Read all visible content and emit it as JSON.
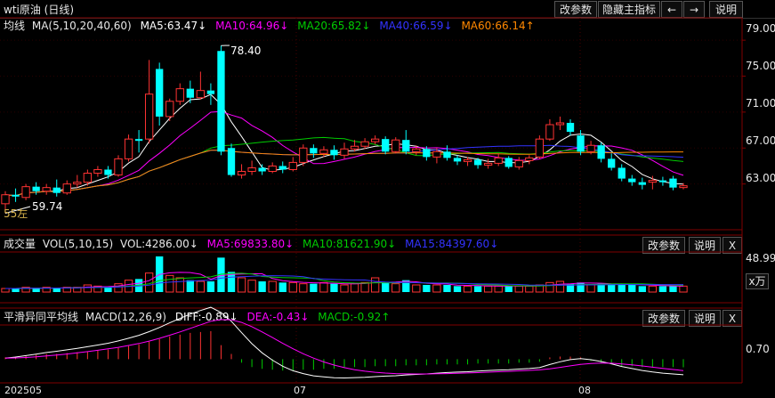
{
  "title": "wti原油 (日线)",
  "toolbar": {
    "modify_params": "改参数",
    "hide_main_indicator": "隐藏主指标",
    "prev_icon": "arrow-left-icon",
    "next_icon": "arrow-right-icon",
    "help": "说明"
  },
  "main_panel": {
    "label": "均线",
    "params": "MA(5,10,20,40,60)",
    "ma5": "MA5:63.47↓",
    "ma10": "MA10:64.96↓",
    "ma20": "MA20:65.82↓",
    "ma40": "MA40:66.59↓",
    "ma60": "MA60:66.14↑",
    "high_marker": "78.40",
    "low_marker": "59.74",
    "low_suffix": "55左"
  },
  "volume_panel": {
    "label": "成交量",
    "params": "VOL(5,10,15)",
    "vol": "VOL:4286.00↓",
    "ma5": "MA5:69833.80↓",
    "ma10": "MA10:81621.90↓",
    "ma15": "MA15:84397.60↓",
    "modify_params": "改参数",
    "help": "说明",
    "close": "X",
    "yaxis_top": "48.99",
    "unit": "x万"
  },
  "macd_panel": {
    "label": "平滑异同平均线",
    "params": "MACD(12,26,9)",
    "diff": "DIFF:-0.89↓",
    "dea": "DEA:-0.43↓",
    "macd": "MACD:-0.92↑",
    "modify_params": "改参数",
    "help": "说明",
    "close": "X",
    "yaxis_label": "0.70"
  },
  "x_axis_labels": [
    "202505",
    "07",
    "08"
  ],
  "colors": {
    "up": "#ff3333",
    "down": "#00ffff",
    "ma5": "#ffffff",
    "ma10": "#ff00ff",
    "ma20": "#00cc00",
    "ma40": "#3333ff",
    "ma60": "#ff8800",
    "axis": "#800000"
  },
  "chart_data": {
    "type": "candlestick",
    "y_ticks": [
      79.0,
      75.0,
      71.0,
      67.0,
      63.0
    ],
    "ylim": [
      59.0,
      80.5
    ],
    "candles": [
      {
        "o": 60.8,
        "c": 61.8,
        "h": 62.2,
        "l": 59.74
      },
      {
        "o": 61.8,
        "c": 61.6,
        "h": 62.5,
        "l": 61.0
      },
      {
        "o": 61.5,
        "c": 62.7,
        "h": 63.0,
        "l": 61.2
      },
      {
        "o": 62.7,
        "c": 62.2,
        "h": 63.2,
        "l": 61.8
      },
      {
        "o": 62.2,
        "c": 62.6,
        "h": 63.0,
        "l": 61.8
      },
      {
        "o": 62.6,
        "c": 62.0,
        "h": 63.5,
        "l": 61.6
      },
      {
        "o": 62.0,
        "c": 63.0,
        "h": 63.4,
        "l": 61.8
      },
      {
        "o": 63.0,
        "c": 63.2,
        "h": 64.0,
        "l": 62.6
      },
      {
        "o": 63.2,
        "c": 64.2,
        "h": 64.6,
        "l": 62.8
      },
      {
        "o": 64.2,
        "c": 64.6,
        "h": 65.0,
        "l": 63.8
      },
      {
        "o": 64.6,
        "c": 64.0,
        "h": 65.0,
        "l": 63.6
      },
      {
        "o": 64.0,
        "c": 65.8,
        "h": 66.2,
        "l": 63.8
      },
      {
        "o": 65.8,
        "c": 68.0,
        "h": 68.5,
        "l": 65.5
      },
      {
        "o": 68.0,
        "c": 67.8,
        "h": 69.0,
        "l": 66.5
      },
      {
        "o": 68.0,
        "c": 73.0,
        "h": 76.8,
        "l": 67.5
      },
      {
        "o": 75.8,
        "c": 70.5,
        "h": 76.5,
        "l": 69.5
      },
      {
        "o": 70.5,
        "c": 72.2,
        "h": 72.5,
        "l": 70.0
      },
      {
        "o": 72.2,
        "c": 73.6,
        "h": 74.2,
        "l": 71.8
      },
      {
        "o": 73.6,
        "c": 72.6,
        "h": 74.5,
        "l": 72.0
      },
      {
        "o": 72.6,
        "c": 73.4,
        "h": 75.5,
        "l": 72.4
      },
      {
        "o": 73.4,
        "c": 73.0,
        "h": 74.2,
        "l": 71.8
      },
      {
        "o": 77.8,
        "c": 66.6,
        "h": 78.4,
        "l": 66.2
      },
      {
        "o": 67.0,
        "c": 64.0,
        "h": 67.5,
        "l": 63.8
      },
      {
        "o": 64.0,
        "c": 64.4,
        "h": 65.2,
        "l": 63.6
      },
      {
        "o": 64.4,
        "c": 64.8,
        "h": 65.6,
        "l": 64.0
      },
      {
        "o": 64.8,
        "c": 64.4,
        "h": 65.2,
        "l": 64.0
      },
      {
        "o": 64.4,
        "c": 65.0,
        "h": 65.4,
        "l": 64.2
      },
      {
        "o": 65.0,
        "c": 64.6,
        "h": 65.5,
        "l": 64.2
      },
      {
        "o": 64.6,
        "c": 65.4,
        "h": 66.0,
        "l": 64.4
      },
      {
        "o": 65.4,
        "c": 67.0,
        "h": 67.4,
        "l": 65.0
      },
      {
        "o": 67.0,
        "c": 66.4,
        "h": 67.4,
        "l": 65.9
      },
      {
        "o": 66.4,
        "c": 66.8,
        "h": 67.2,
        "l": 66.0
      },
      {
        "o": 66.8,
        "c": 66.2,
        "h": 67.3,
        "l": 65.7
      },
      {
        "o": 66.2,
        "c": 66.9,
        "h": 67.6,
        "l": 65.8
      },
      {
        "o": 66.9,
        "c": 67.2,
        "h": 67.9,
        "l": 66.6
      },
      {
        "o": 67.2,
        "c": 67.7,
        "h": 68.1,
        "l": 66.9
      },
      {
        "o": 67.7,
        "c": 68.0,
        "h": 68.4,
        "l": 67.4
      },
      {
        "o": 68.0,
        "c": 66.6,
        "h": 68.3,
        "l": 66.3
      },
      {
        "o": 66.6,
        "c": 67.9,
        "h": 68.2,
        "l": 66.4
      },
      {
        "o": 67.9,
        "c": 66.6,
        "h": 69.0,
        "l": 66.3
      },
      {
        "o": 66.6,
        "c": 66.9,
        "h": 67.3,
        "l": 66.2
      },
      {
        "o": 66.9,
        "c": 66.0,
        "h": 67.2,
        "l": 65.6
      },
      {
        "o": 66.0,
        "c": 66.6,
        "h": 67.0,
        "l": 65.3
      },
      {
        "o": 66.6,
        "c": 65.9,
        "h": 67.3,
        "l": 65.6
      },
      {
        "o": 65.9,
        "c": 65.5,
        "h": 66.2,
        "l": 65.1
      },
      {
        "o": 65.5,
        "c": 65.7,
        "h": 66.0,
        "l": 65.0
      },
      {
        "o": 65.7,
        "c": 65.1,
        "h": 65.9,
        "l": 64.7
      },
      {
        "o": 65.1,
        "c": 65.3,
        "h": 65.8,
        "l": 64.7
      },
      {
        "o": 65.3,
        "c": 65.9,
        "h": 66.4,
        "l": 65.0
      },
      {
        "o": 65.9,
        "c": 64.9,
        "h": 66.1,
        "l": 64.7
      },
      {
        "o": 64.9,
        "c": 65.6,
        "h": 66.0,
        "l": 64.6
      },
      {
        "o": 65.6,
        "c": 65.9,
        "h": 66.2,
        "l": 65.2
      },
      {
        "o": 66.0,
        "c": 68.0,
        "h": 68.4,
        "l": 65.8
      },
      {
        "o": 68.0,
        "c": 69.6,
        "h": 70.2,
        "l": 67.8
      },
      {
        "o": 69.6,
        "c": 69.8,
        "h": 70.5,
        "l": 69.0
      },
      {
        "o": 69.8,
        "c": 68.8,
        "h": 70.2,
        "l": 68.4
      },
      {
        "o": 68.4,
        "c": 66.6,
        "h": 69.0,
        "l": 66.2
      },
      {
        "o": 66.6,
        "c": 67.3,
        "h": 67.8,
        "l": 66.3
      },
      {
        "o": 67.3,
        "c": 65.8,
        "h": 67.6,
        "l": 65.4
      },
      {
        "o": 65.8,
        "c": 64.8,
        "h": 66.4,
        "l": 64.5
      },
      {
        "o": 64.8,
        "c": 63.6,
        "h": 65.2,
        "l": 63.3
      },
      {
        "o": 63.6,
        "c": 63.2,
        "h": 64.0,
        "l": 62.8
      },
      {
        "o": 63.2,
        "c": 62.9,
        "h": 63.7,
        "l": 62.4
      },
      {
        "o": 63.2,
        "c": 63.4,
        "h": 63.9,
        "l": 62.4
      },
      {
        "o": 63.4,
        "c": 63.2,
        "h": 63.8,
        "l": 62.8
      },
      {
        "o": 63.6,
        "c": 62.6,
        "h": 63.9,
        "l": 62.3
      },
      {
        "o": 62.6,
        "c": 62.8,
        "h": 63.1,
        "l": 62.4
      }
    ],
    "volume": [
      3,
      3,
      4,
      3,
      4,
      3,
      4,
      4,
      6,
      5,
      4,
      7,
      10,
      11,
      16,
      30,
      14,
      12,
      10,
      9,
      9,
      29,
      17,
      12,
      10,
      9,
      9,
      8,
      8,
      7,
      7,
      8,
      7,
      6,
      7,
      8,
      12,
      8,
      7,
      10,
      6,
      6,
      6,
      6,
      5,
      5,
      5,
      5,
      5,
      5,
      5,
      5,
      6,
      8,
      9,
      7,
      8,
      6,
      7,
      7,
      6,
      6,
      5,
      5,
      5,
      5,
      5
    ],
    "macd_bars": [
      0.2,
      0.3,
      0.4,
      0.5,
      0.6,
      0.6,
      0.7,
      0.8,
      0.9,
      1.0,
      1.1,
      1.3,
      1.5,
      1.7,
      2.0,
      2.3,
      2.6,
      2.8,
      3.0,
      3.1,
      3.2,
      1.6,
      0.6,
      -0.4,
      -0.9,
      -1.1,
      -1.2,
      -1.3,
      -1.3,
      -1.2,
      -1.2,
      -1.1,
      -1.1,
      -1.0,
      -0.9,
      -0.9,
      -0.8,
      -0.8,
      -0.8,
      -0.7,
      -0.7,
      -0.7,
      -0.6,
      -0.6,
      -0.6,
      -0.6,
      -0.5,
      -0.5,
      -0.5,
      -0.5,
      -0.4,
      -0.4,
      -0.3,
      0.2,
      0.3,
      0.3,
      0.2,
      -0.2,
      -0.4,
      -0.6,
      -0.8,
      -0.8,
      -0.9,
      -0.9,
      -0.9,
      -0.9,
      -0.92
    ],
    "macd_ylim": [
      -2.5,
      3.8
    ]
  }
}
